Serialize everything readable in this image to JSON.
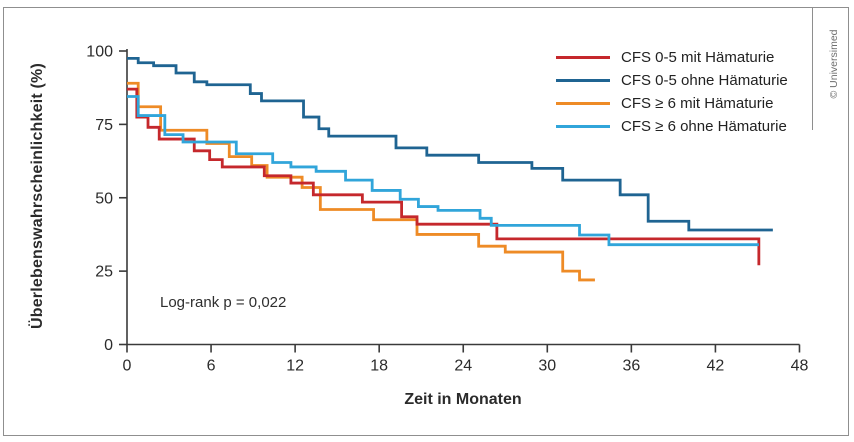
{
  "figure": {
    "credit": "© Universimed",
    "border_color": "#8f8f8f",
    "background": "#ffffff"
  },
  "chart_data": {
    "type": "line",
    "subtype": "kaplan-meier-step",
    "title": "",
    "xlabel": "Zeit in Monaten",
    "ylabel": "Überlebenswahrscheinlichkeit (%)",
    "annotation": "Log-rank p = 0,022",
    "xlim": [
      0,
      48
    ],
    "ylim": [
      0,
      100
    ],
    "xticks": [
      0,
      6,
      12,
      18,
      24,
      30,
      36,
      42,
      48
    ],
    "yticks": [
      0,
      25,
      50,
      75,
      100
    ],
    "grid": false,
    "legend_position": "top-right-inside",
    "axis_color": "#3a3a3a",
    "tick_label_color": "#2b2b2b",
    "series": [
      {
        "name": "CFS 0-5 mit Hämaturie",
        "color": "#c5282c",
        "points": [
          [
            0,
            87
          ],
          [
            0.7,
            77.5
          ],
          [
            1.5,
            74
          ],
          [
            2.3,
            70
          ],
          [
            4.8,
            66
          ],
          [
            5.9,
            63
          ],
          [
            6.8,
            60.5
          ],
          [
            9.8,
            57.5
          ],
          [
            11.7,
            55
          ],
          [
            13.3,
            51
          ],
          [
            16.8,
            48.5
          ],
          [
            19.6,
            43.5
          ],
          [
            20.7,
            41
          ],
          [
            26.4,
            36
          ],
          [
            45.1,
            27
          ]
        ]
      },
      {
        "name": "CFS 0-5 ohne Hämaturie",
        "color": "#1f6492",
        "points": [
          [
            0,
            97.5
          ],
          [
            0.8,
            96
          ],
          [
            1.9,
            95
          ],
          [
            3.5,
            92.5
          ],
          [
            4.8,
            89.5
          ],
          [
            5.7,
            88.5
          ],
          [
            8.8,
            85.5
          ],
          [
            9.6,
            83
          ],
          [
            12.6,
            77.5
          ],
          [
            13.7,
            73.5
          ],
          [
            14.4,
            71
          ],
          [
            19.2,
            67
          ],
          [
            21.4,
            64.5
          ],
          [
            25.1,
            62
          ],
          [
            28.9,
            60
          ],
          [
            31.1,
            56
          ],
          [
            35.2,
            51
          ],
          [
            37.2,
            42
          ],
          [
            40.1,
            39
          ],
          [
            46.1,
            39
          ]
        ]
      },
      {
        "name": "CFS ≥ 6 mit Hämaturie",
        "color": "#ee8b26",
        "points": [
          [
            0,
            89
          ],
          [
            0.8,
            81
          ],
          [
            2.4,
            73
          ],
          [
            5.7,
            68.5
          ],
          [
            7.3,
            64
          ],
          [
            8.9,
            61
          ],
          [
            10,
            57
          ],
          [
            12.5,
            53.5
          ],
          [
            13.8,
            46
          ],
          [
            17.6,
            42.5
          ],
          [
            20.7,
            37.5
          ],
          [
            25.1,
            33.5
          ],
          [
            27,
            31.5
          ],
          [
            31.1,
            25
          ],
          [
            32.3,
            22
          ],
          [
            33.4,
            22
          ]
        ]
      },
      {
        "name": "CFS ≥ 6 ohne Hämaturie",
        "color": "#31a5da",
        "points": [
          [
            0,
            84.5
          ],
          [
            0.8,
            78
          ],
          [
            2.7,
            71.5
          ],
          [
            4,
            69
          ],
          [
            7.8,
            65
          ],
          [
            10.4,
            62
          ],
          [
            11.7,
            60.5
          ],
          [
            13.5,
            59
          ],
          [
            15.6,
            56
          ],
          [
            17.5,
            52.5
          ],
          [
            19.5,
            49.5
          ],
          [
            20.8,
            47
          ],
          [
            22.2,
            45.7
          ],
          [
            25.2,
            43
          ],
          [
            26,
            40.6
          ],
          [
            32.3,
            37.3
          ],
          [
            34.4,
            34
          ],
          [
            45.1,
            34
          ]
        ]
      }
    ]
  }
}
